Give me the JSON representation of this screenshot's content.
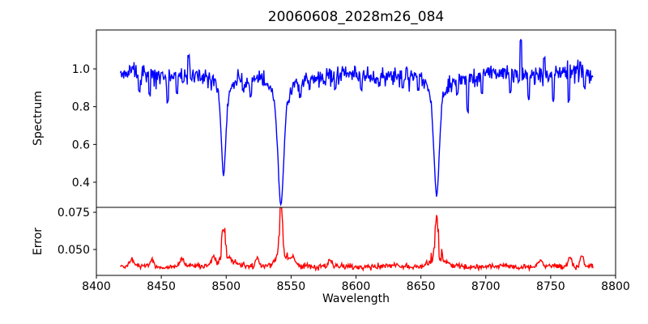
{
  "title": "20060608_2028m26_084",
  "axes": {
    "xlabel": "Wavelength",
    "ylabel_top": "Spectrum",
    "ylabel_bottom": "Error",
    "xlim": [
      8400,
      8800
    ],
    "ylim_top": [
      0.267,
      1.206
    ],
    "ylim_bottom": [
      0.0326,
      0.0783
    ],
    "x_ticks": [
      {
        "v": 8400,
        "label": "8400"
      },
      {
        "v": 8450,
        "label": "8450"
      },
      {
        "v": 8500,
        "label": "8500"
      },
      {
        "v": 8550,
        "label": "8550"
      },
      {
        "v": 8600,
        "label": "8600"
      },
      {
        "v": 8650,
        "label": "8650"
      },
      {
        "v": 8700,
        "label": "8700"
      },
      {
        "v": 8750,
        "label": "8750"
      },
      {
        "v": 8800,
        "label": "8800"
      }
    ],
    "y_ticks_top": [
      {
        "v": 0.4,
        "label": "0.4"
      },
      {
        "v": 0.6,
        "label": "0.6"
      },
      {
        "v": 0.8,
        "label": "0.8"
      },
      {
        "v": 1.0,
        "label": "1.0"
      }
    ],
    "y_ticks_bottom": [
      {
        "v": 0.05,
        "label": "0.050"
      },
      {
        "v": 0.075,
        "label": "0.075"
      }
    ],
    "grid": false,
    "legend": "none"
  },
  "colors": {
    "spectrum_line": "#0000ff",
    "error_line": "#ff0000",
    "axis": "#000000",
    "background": "#ffffff"
  },
  "chart_data": {
    "type": "line",
    "title": "20060608_2028m26_084",
    "xlabel": "Wavelength",
    "panels": [
      {
        "name": "Spectrum",
        "color": "#0000ff",
        "position": "top"
      },
      {
        "name": "Error",
        "color": "#ff0000",
        "position": "bottom"
      }
    ],
    "x_range": [
      8418.5,
      8782.5
    ],
    "sample_step": 0.5,
    "seed": 84,
    "spectrum": {
      "continuum": 0.97,
      "noise_sigma": 0.026,
      "wobble_amp": 0.008,
      "wobble_period": 55,
      "absorption_lines": [
        {
          "center": 8498.0,
          "min_value": 0.44,
          "core_width": 1.6,
          "wing_width": 4.5
        },
        {
          "center": 8542.1,
          "min_value": 0.28,
          "core_width": 2.1,
          "wing_width": 7.0
        },
        {
          "center": 8662.1,
          "min_value": 0.33,
          "core_width": 1.9,
          "wing_width": 6.0
        }
      ],
      "outlier_spikes": [
        {
          "x": 8433,
          "value": 0.88
        },
        {
          "x": 8441,
          "value": 0.86
        },
        {
          "x": 8455,
          "value": 0.83
        },
        {
          "x": 8462,
          "value": 0.87
        },
        {
          "x": 8471,
          "value": 1.07
        },
        {
          "x": 8513,
          "value": 0.88
        },
        {
          "x": 8519,
          "value": 0.86
        },
        {
          "x": 8534,
          "value": 0.9
        },
        {
          "x": 8557,
          "value": 0.86
        },
        {
          "x": 8584,
          "value": 0.9
        },
        {
          "x": 8604,
          "value": 0.89
        },
        {
          "x": 8636,
          "value": 0.9
        },
        {
          "x": 8648,
          "value": 0.89
        },
        {
          "x": 8669,
          "value": 0.87
        },
        {
          "x": 8678,
          "value": 0.86
        },
        {
          "x": 8686,
          "value": 0.78
        },
        {
          "x": 8697,
          "value": 0.87
        },
        {
          "x": 8719,
          "value": 0.88
        },
        {
          "x": 8727,
          "value": 1.15
        },
        {
          "x": 8733,
          "value": 0.85
        },
        {
          "x": 8745,
          "value": 1.05
        },
        {
          "x": 8752,
          "value": 0.84
        },
        {
          "x": 8764,
          "value": 0.83
        },
        {
          "x": 8776,
          "value": 0.9
        }
      ]
    },
    "error": {
      "baseline": 0.0385,
      "noise_sigma": 0.0009,
      "wobble_amp": 0.0006,
      "wobble_period": 40,
      "peaks": [
        {
          "center": 8498.0,
          "max_value": 0.0625
        },
        {
          "center": 8542.1,
          "max_value": 0.0745
        },
        {
          "center": 8662.1,
          "max_value": 0.0668
        }
      ],
      "bumps": [
        {
          "x": 8427,
          "value": 0.0435
        },
        {
          "x": 8443,
          "value": 0.0442
        },
        {
          "x": 8466,
          "value": 0.0438
        },
        {
          "x": 8490,
          "value": 0.043
        },
        {
          "x": 8524,
          "value": 0.0438
        },
        {
          "x": 8551,
          "value": 0.0435
        },
        {
          "x": 8580,
          "value": 0.0428
        },
        {
          "x": 8742,
          "value": 0.0428
        },
        {
          "x": 8765,
          "value": 0.0452
        },
        {
          "x": 8774,
          "value": 0.0468
        }
      ]
    }
  }
}
